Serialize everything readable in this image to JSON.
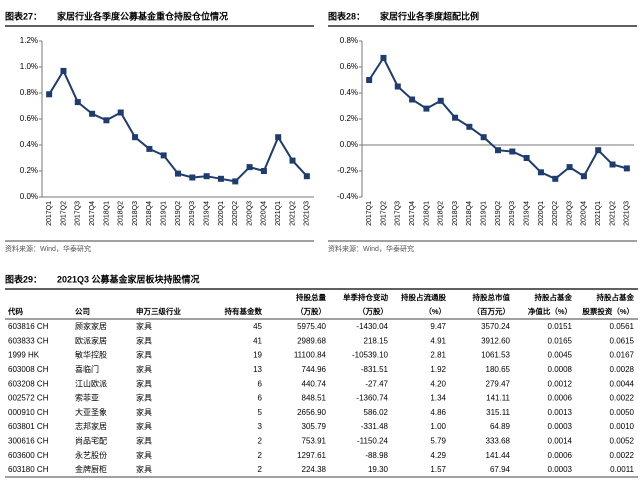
{
  "chart_data": [
    {
      "type": "line",
      "label": "图表27：",
      "title": "家居行业各季度公募基金重仓持股仓位情况",
      "source": "资料来源：Wind，华泰研究",
      "categories": [
        "2017Q1",
        "2017Q2",
        "2017Q3",
        "2017Q4",
        "2018Q1",
        "2018Q2",
        "2018Q3",
        "2018Q4",
        "2019Q1",
        "2019Q2",
        "2019Q3",
        "2019Q4",
        "2020Q1",
        "2020Q2",
        "2020Q3",
        "2020Q4",
        "2021Q1",
        "2021Q2",
        "2021Q3"
      ],
      "values": [
        0.79,
        0.97,
        0.73,
        0.64,
        0.59,
        0.65,
        0.46,
        0.37,
        0.32,
        0.18,
        0.15,
        0.16,
        0.14,
        0.12,
        0.23,
        0.2,
        0.46,
        0.28,
        0.16
      ],
      "color": "#1f3c6e",
      "ylim": [
        0,
        1.2
      ],
      "yticks": [
        {
          "value": 0,
          "label": "0.0%"
        },
        {
          "value": 0.2,
          "label": "0.2%"
        },
        {
          "value": 0.4,
          "label": "0.4%"
        },
        {
          "value": 0.6,
          "label": "0.6%"
        },
        {
          "value": 0.8,
          "label": "0.8%"
        },
        {
          "value": 1.0,
          "label": "1.0%"
        },
        {
          "value": 1.2,
          "label": "1.2%"
        }
      ]
    },
    {
      "type": "line",
      "label": "图表28：",
      "title": "家居行业各季度超配比例",
      "source": "资料来源：Wind，华泰研究",
      "categories": [
        "2017Q1",
        "2017Q2",
        "2017Q3",
        "2017Q4",
        "2018Q1",
        "2018Q2",
        "2018Q3",
        "2018Q4",
        "2019Q1",
        "2019Q2",
        "2019Q3",
        "2019Q4",
        "2020Q1",
        "2020Q2",
        "2020Q3",
        "2020Q4",
        "2021Q1",
        "2021Q2",
        "2021Q3"
      ],
      "values": [
        0.5,
        0.67,
        0.45,
        0.35,
        0.28,
        0.34,
        0.21,
        0.14,
        0.06,
        -0.04,
        -0.05,
        -0.1,
        -0.21,
        -0.26,
        -0.17,
        -0.24,
        -0.04,
        -0.15,
        -0.18
      ],
      "color": "#1f3c6e",
      "ylim": [
        -0.4,
        0.8
      ],
      "yticks": [
        {
          "value": -0.4,
          "label": "-0.4%"
        },
        {
          "value": -0.2,
          "label": "-0.2%"
        },
        {
          "value": 0,
          "label": "0.0%"
        },
        {
          "value": 0.2,
          "label": "0.2%"
        },
        {
          "value": 0.4,
          "label": "0.4%"
        },
        {
          "value": 0.6,
          "label": "0.6%"
        },
        {
          "value": 0.8,
          "label": "0.8%"
        }
      ]
    }
  ],
  "table": {
    "label": "图表29：",
    "title": "2021Q3 公募基金家居板块持股情况",
    "headers": [
      [
        "",
        "代码"
      ],
      [
        "",
        "公司"
      ],
      [
        "",
        "申万三级行业"
      ],
      [
        "",
        "持有基金数"
      ],
      [
        "持股总量",
        "（万股）"
      ],
      [
        "单季持仓变动",
        "（万股）"
      ],
      [
        "持股占流通股",
        "（%）"
      ],
      [
        "持股总市值",
        "（百万元）"
      ],
      [
        "持股占基金",
        "净值比（%）"
      ],
      [
        "持股占基金",
        "股票投资（%）"
      ]
    ],
    "rows": [
      [
        "603816 CH",
        "顾家家居",
        "家具",
        "45",
        "5975.40",
        "-1430.04",
        "9.47",
        "3570.24",
        "0.0151",
        "0.0561"
      ],
      [
        "603833 CH",
        "欧派家居",
        "家具",
        "41",
        "2989.68",
        "218.15",
        "4.91",
        "3912.60",
        "0.0165",
        "0.0615"
      ],
      [
        "1999 HK",
        "敏华控股",
        "家具",
        "19",
        "11100.84",
        "-10539.10",
        "2.81",
        "1061.53",
        "0.0045",
        "0.0167"
      ],
      [
        "603008 CH",
        "喜临门",
        "家具",
        "13",
        "744.96",
        "-831.51",
        "1.92",
        "180.65",
        "0.0008",
        "0.0028"
      ],
      [
        "603208 CH",
        "江山欧派",
        "家具",
        "6",
        "440.74",
        "-27.47",
        "4.20",
        "279.47",
        "0.0012",
        "0.0044"
      ],
      [
        "002572 CH",
        "索菲亚",
        "家具",
        "6",
        "848.51",
        "-1360.74",
        "1.34",
        "141.11",
        "0.0006",
        "0.0022"
      ],
      [
        "000910 CH",
        "大亚圣象",
        "家具",
        "5",
        "2656.90",
        "586.02",
        "4.86",
        "315.11",
        "0.0013",
        "0.0050"
      ],
      [
        "603801 CH",
        "志邦家居",
        "家具",
        "3",
        "305.79",
        "-331.48",
        "1.00",
        "64.89",
        "0.0003",
        "0.0010"
      ],
      [
        "300616 CH",
        "尚品宅配",
        "家具",
        "2",
        "753.91",
        "-1150.24",
        "5.79",
        "333.68",
        "0.0014",
        "0.0052"
      ],
      [
        "603600 CH",
        "永艺股份",
        "家具",
        "2",
        "1297.61",
        "-88.98",
        "4.29",
        "141.44",
        "0.0006",
        "0.0022"
      ],
      [
        "603180 CH",
        "金牌厨柜",
        "家具",
        "2",
        "224.38",
        "19.30",
        "1.57",
        "67.94",
        "0.0003",
        "0.0011"
      ]
    ]
  }
}
